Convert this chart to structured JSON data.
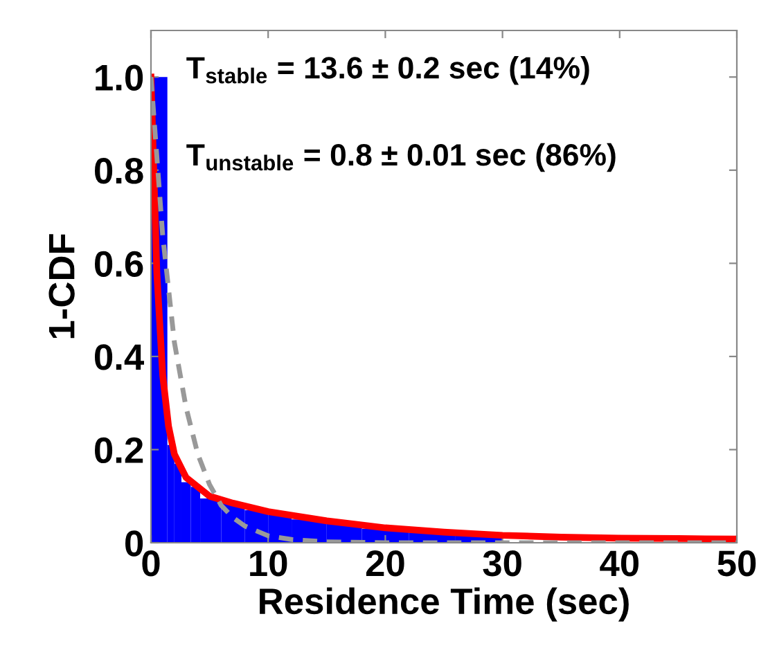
{
  "chart_data": {
    "type": "histogram",
    "xlabel": "Residence Time (sec)",
    "ylabel": "1-CDF",
    "bins": [
      0,
      1.4,
      2.0,
      2.6,
      3.4,
      4.2,
      6,
      8,
      10,
      12,
      15,
      18,
      22,
      26,
      30
    ],
    "values": [
      1.0,
      0.21,
      0.17,
      0.13,
      0.12,
      0.095,
      0.085,
      0.07,
      0.06,
      0.05,
      0.04,
      0.03,
      0.022,
      0.016
    ],
    "color": "#0000ff",
    "series": [
      {
        "type": "line",
        "color": "#ff0000",
        "line_style": "solid",
        "x": [
          0,
          0.5,
          1,
          1.5,
          2,
          3,
          4,
          5,
          7,
          10,
          15,
          20,
          25,
          30,
          35,
          40,
          45,
          50
        ],
        "values": [
          1.0,
          0.58,
          0.36,
          0.25,
          0.19,
          0.14,
          0.12,
          0.1,
          0.085,
          0.067,
          0.047,
          0.032,
          0.023,
          0.016,
          0.012,
          0.01,
          0.009,
          0.008
        ]
      },
      {
        "type": "line",
        "color": "#999999",
        "line_style": "dashed",
        "x": [
          0,
          1,
          2,
          3,
          4,
          5,
          6,
          7,
          8,
          10,
          12,
          15,
          20,
          50
        ],
        "values": [
          1.0,
          0.66,
          0.43,
          0.29,
          0.19,
          0.125,
          0.08,
          0.054,
          0.036,
          0.015,
          0.007,
          0.002,
          0,
          0
        ]
      }
    ],
    "annotations": [
      "T$_{stable}$ = 13.6 ± 0.2 sec (14%)",
      "T$_{unstable}$ = 0.8 ± 0.01 sec (86%)"
    ],
    "xlim": [
      0,
      50
    ],
    "ylim": [
      0,
      1.1
    ],
    "xticks": [
      0,
      10,
      20,
      30,
      40,
      50
    ],
    "yticks": [
      0,
      {
        "value": 0.2,
        "label": "0.2"
      },
      {
        "value": 0.4,
        "label": "0.4"
      },
      {
        "value": 0.6,
        "label": "0.6"
      },
      {
        "value": 0.8,
        "label": "0.8"
      },
      {
        "value": 1.0,
        "label": "1.0"
      }
    ],
    "grid": false,
    "legend": false
  }
}
